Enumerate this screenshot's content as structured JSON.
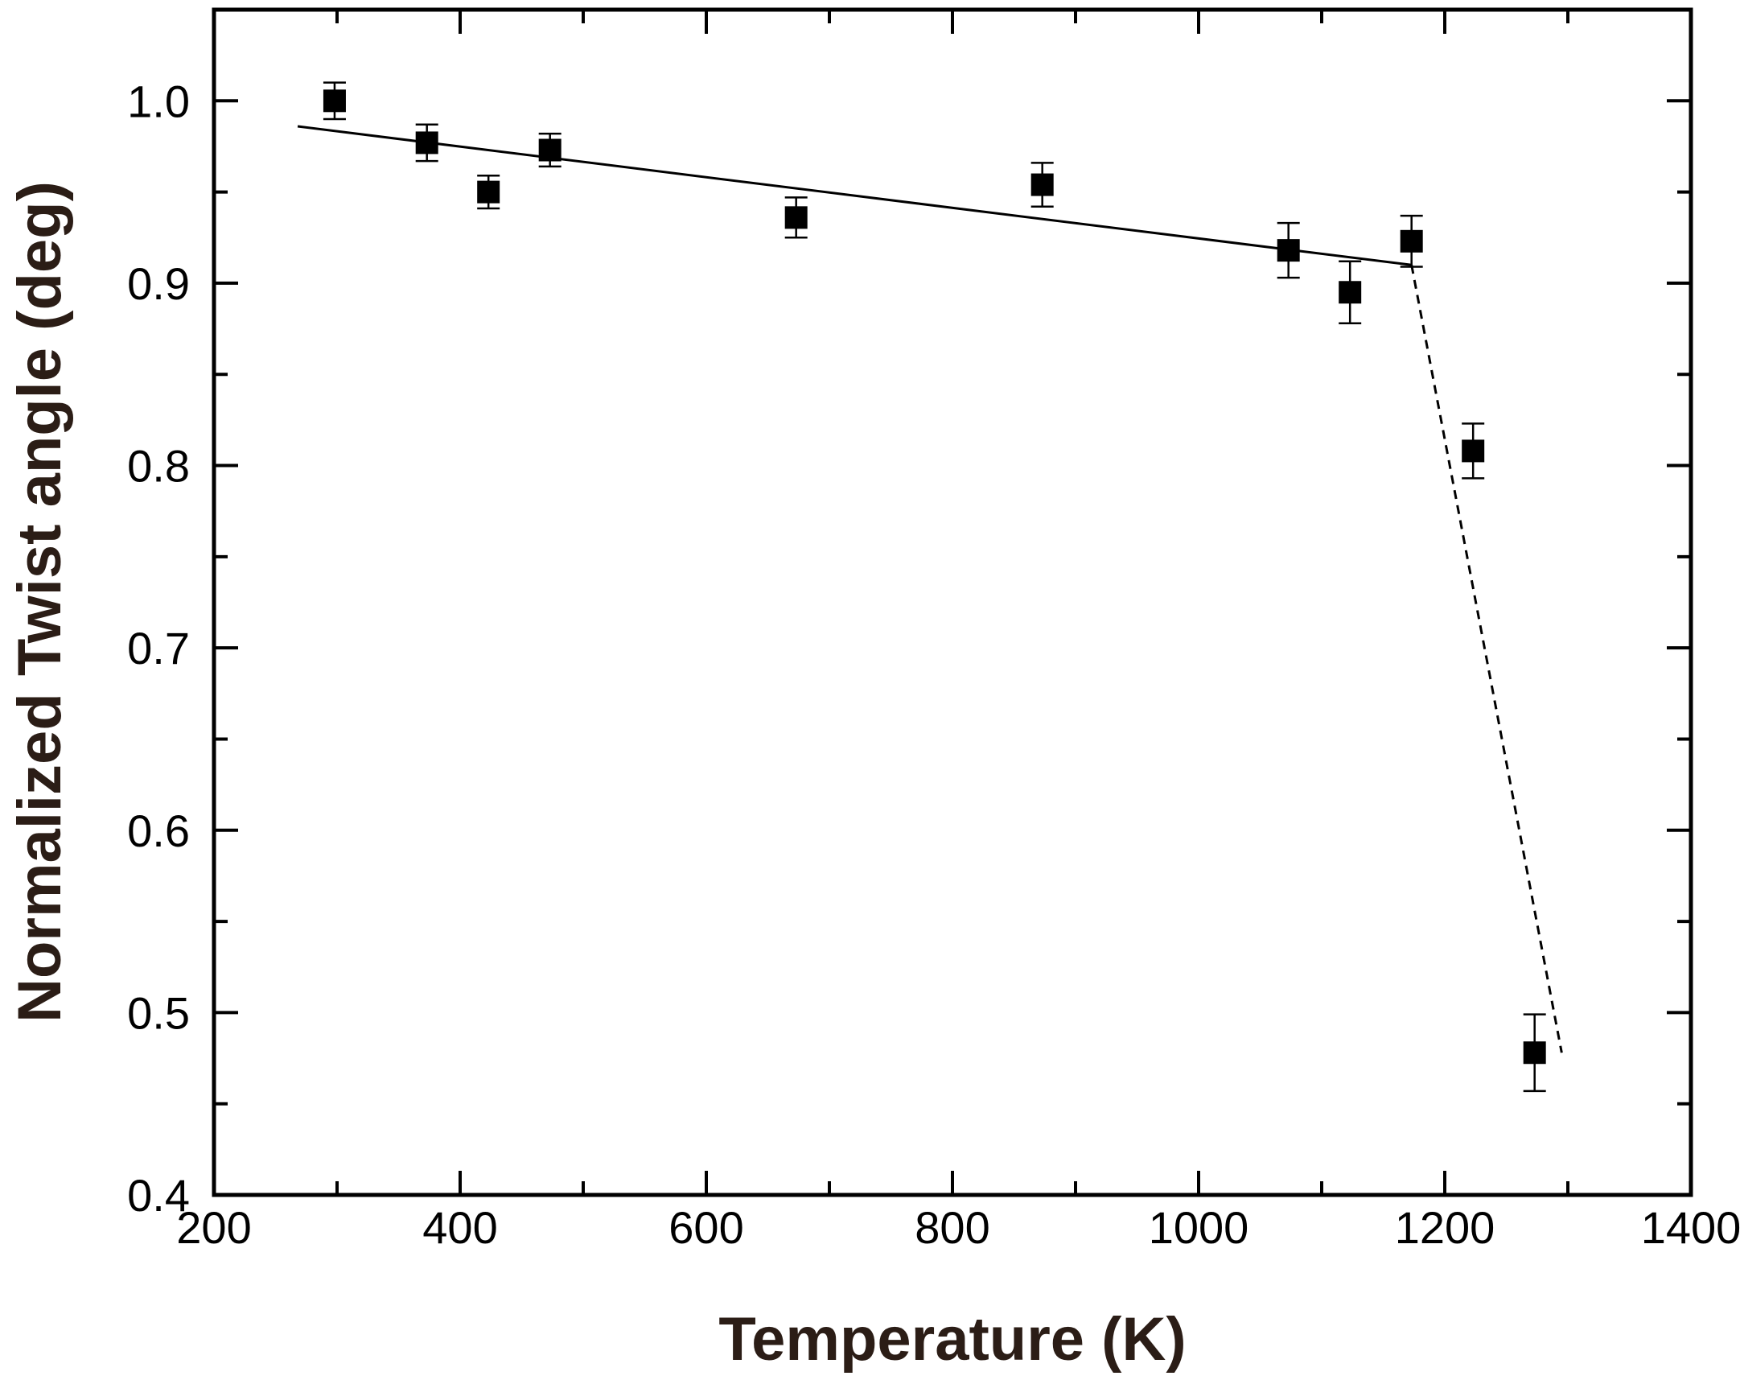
{
  "chart_data": {
    "type": "scatter",
    "title": "",
    "xlabel": "Temperature (K)",
    "ylabel": "Normalized Twist angle (deg)",
    "xlim": [
      200,
      1400
    ],
    "ylim": [
      0.4,
      1.05
    ],
    "x_ticks": [
      200,
      400,
      600,
      800,
      1000,
      1200,
      1400
    ],
    "x_tick_labels": [
      "200",
      "400",
      "600",
      "800",
      "1000",
      "1200",
      "1400"
    ],
    "x_minor_ticks": [
      300,
      500,
      700,
      900,
      1100,
      1300
    ],
    "y_ticks": [
      0.4,
      0.5,
      0.6,
      0.7,
      0.8,
      0.9,
      1.0
    ],
    "y_tick_labels": [
      "0.4",
      "0.5",
      "0.6",
      "0.7",
      "0.8",
      "0.9",
      "1.0"
    ],
    "y_minor_ticks": [
      0.45,
      0.55,
      0.65,
      0.75,
      0.85,
      0.95
    ],
    "grid": false,
    "marker": "filled-square",
    "marker_color": "#000000",
    "points": [
      {
        "x": 298,
        "y": 1.0,
        "err": 0.01
      },
      {
        "x": 373,
        "y": 0.977,
        "err": 0.01
      },
      {
        "x": 423,
        "y": 0.95,
        "err": 0.009
      },
      {
        "x": 473,
        "y": 0.973,
        "err": 0.009
      },
      {
        "x": 673,
        "y": 0.936,
        "err": 0.011
      },
      {
        "x": 873,
        "y": 0.954,
        "err": 0.012
      },
      {
        "x": 1073,
        "y": 0.918,
        "err": 0.015
      },
      {
        "x": 1123,
        "y": 0.895,
        "err": 0.017
      },
      {
        "x": 1173,
        "y": 0.923,
        "err": 0.014
      },
      {
        "x": 1223,
        "y": 0.808,
        "err": 0.015
      },
      {
        "x": 1273,
        "y": 0.478,
        "err": 0.021
      }
    ],
    "fit_lines": [
      {
        "style": "solid",
        "x": [
          268,
          1173
        ],
        "y": [
          0.986,
          0.91
        ]
      },
      {
        "style": "dashed",
        "x": [
          1173,
          1295
        ],
        "y": [
          0.91,
          0.478
        ]
      }
    ]
  }
}
